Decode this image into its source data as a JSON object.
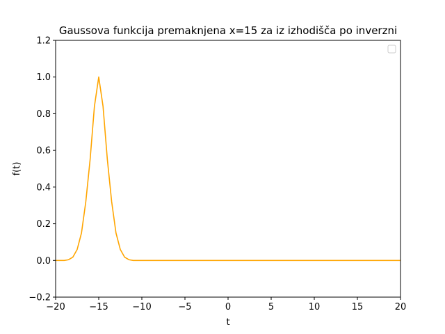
{
  "chart_data": {
    "type": "line",
    "title": "Gaussova funkcija premaknjena x=15 za iz izhodišča po inverzni",
    "xlabel": "t",
    "ylabel": "f(t)",
    "xlim": [
      -20,
      20
    ],
    "ylim": [
      -0.2,
      1.2
    ],
    "xticks": [
      -20,
      -15,
      -10,
      -5,
      0,
      5,
      10,
      15,
      20
    ],
    "xtick_labels": [
      "−20",
      "−15",
      "−10",
      "−5",
      "0",
      "5",
      "10",
      "15",
      "20"
    ],
    "yticks": [
      -0.2,
      0.0,
      0.2,
      0.4,
      0.6,
      0.8,
      1.0,
      1.2
    ],
    "ytick_labels": [
      "−0.2",
      "0.0",
      "0.2",
      "0.4",
      "0.6",
      "0.8",
      "1.0",
      "1.2"
    ],
    "grid": false,
    "legend": {
      "placement": "top-right",
      "entries": []
    },
    "series": [
      {
        "color": "#ffa500",
        "x": [
          -20,
          -19,
          -18.5,
          -18,
          -17.5,
          -17,
          -16.5,
          -16,
          -15.5,
          -15,
          -14.5,
          -14,
          -13.5,
          -13,
          -12.5,
          -12,
          -11.5,
          -11,
          -10,
          0,
          10,
          20
        ],
        "y": [
          0.0,
          0.0,
          0.004,
          0.018,
          0.06,
          0.15,
          0.32,
          0.55,
          0.84,
          1.0,
          0.84,
          0.55,
          0.32,
          0.15,
          0.06,
          0.018,
          0.004,
          0.0,
          0.0,
          0.0,
          0.0,
          0.0
        ]
      }
    ]
  }
}
